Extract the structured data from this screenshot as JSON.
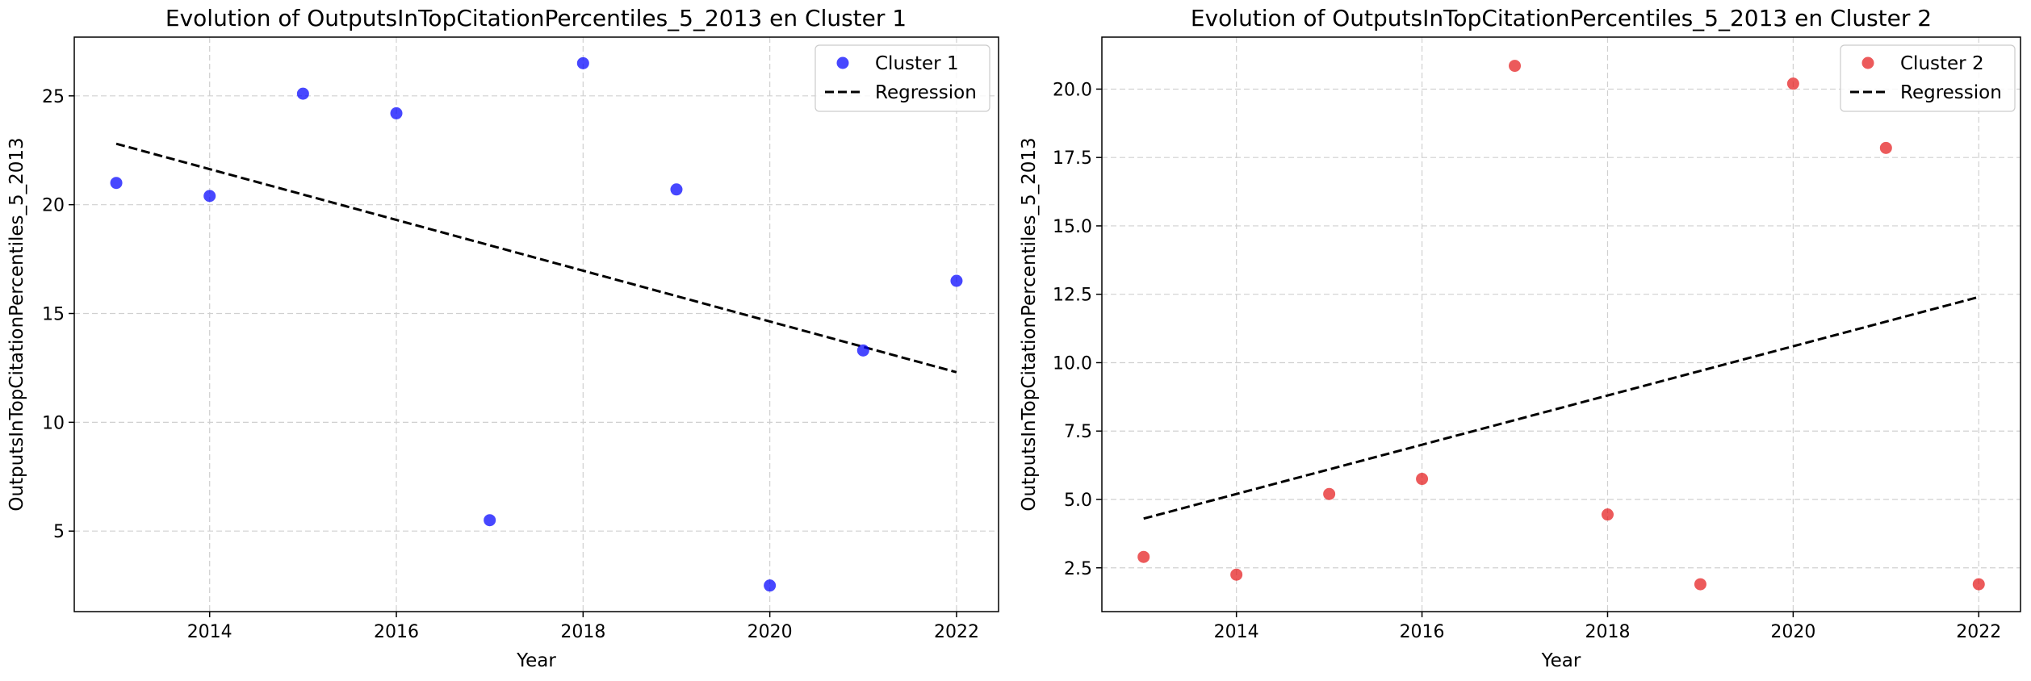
{
  "figure": {
    "charts": [
      {
        "name": "cluster-1",
        "title": "Evolution of OutputsInTopCitationPercentiles_5_2013 en Cluster 1",
        "xlabel": "Year",
        "ylabel": "OutputsInTopCitationPercentiles_5_2013",
        "legend_series": "Cluster 1",
        "legend_regression": "Regression",
        "x_ticks": [
          2014,
          2016,
          2018,
          2020,
          2022
        ],
        "y_ticks": [
          5,
          10,
          15,
          20,
          25
        ],
        "y_tick_labels": [
          "5",
          "10",
          "15",
          "20",
          "25"
        ]
      },
      {
        "name": "cluster-2",
        "title": "Evolution of OutputsInTopCitationPercentiles_5_2013 en Cluster 2",
        "xlabel": "Year",
        "ylabel": "OutputsInTopCitationPercentiles_5_2013",
        "legend_series": "Cluster 2",
        "legend_regression": "Regression",
        "x_ticks": [
          2014,
          2016,
          2018,
          2020,
          2022
        ],
        "y_ticks": [
          2.5,
          5.0,
          7.5,
          10.0,
          12.5,
          15.0,
          17.5,
          20.0
        ],
        "y_tick_labels": [
          "2.5",
          "5.0",
          "7.5",
          "10.0",
          "12.5",
          "15.0",
          "17.5",
          "20.0"
        ]
      }
    ]
  },
  "chart_data": [
    {
      "type": "scatter",
      "title": "Evolution of OutputsInTopCitationPercentiles_5_2013 en Cluster 1",
      "xlabel": "Year",
      "ylabel": "OutputsInTopCitationPercentiles_5_2013",
      "xlim": [
        2012.55,
        2022.45
      ],
      "ylim": [
        1.3,
        27.7
      ],
      "grid": true,
      "legend_position": "top-right",
      "series": [
        {
          "name": "Cluster 1",
          "color": "#0000ff",
          "x": [
            2013,
            2014,
            2015,
            2016,
            2017,
            2018,
            2019,
            2020,
            2021,
            2022
          ],
          "y": [
            21.0,
            20.4,
            25.1,
            24.2,
            5.5,
            26.5,
            20.7,
            2.5,
            13.3,
            16.5
          ]
        },
        {
          "name": "Regression",
          "style": "dashed",
          "color": "#000000",
          "x": [
            2013,
            2022
          ],
          "y": [
            22.8,
            12.3
          ]
        }
      ]
    },
    {
      "type": "scatter",
      "title": "Evolution of OutputsInTopCitationPercentiles_5_2013 en Cluster 2",
      "xlabel": "Year",
      "ylabel": "OutputsInTopCitationPercentiles_5_2013",
      "xlim": [
        2012.55,
        2022.45
      ],
      "ylim": [
        0.9,
        21.9
      ],
      "grid": true,
      "legend_position": "top-right",
      "series": [
        {
          "name": "Cluster 2",
          "color": "#e41a1c",
          "x": [
            2013,
            2014,
            2015,
            2016,
            2017,
            2018,
            2019,
            2020,
            2021,
            2022
          ],
          "y": [
            2.9,
            2.25,
            5.2,
            5.75,
            20.85,
            4.45,
            1.9,
            20.2,
            17.85,
            1.9
          ]
        },
        {
          "name": "Regression",
          "style": "dashed",
          "color": "#000000",
          "x": [
            2013,
            2022
          ],
          "y": [
            4.3,
            12.4
          ]
        }
      ]
    }
  ]
}
